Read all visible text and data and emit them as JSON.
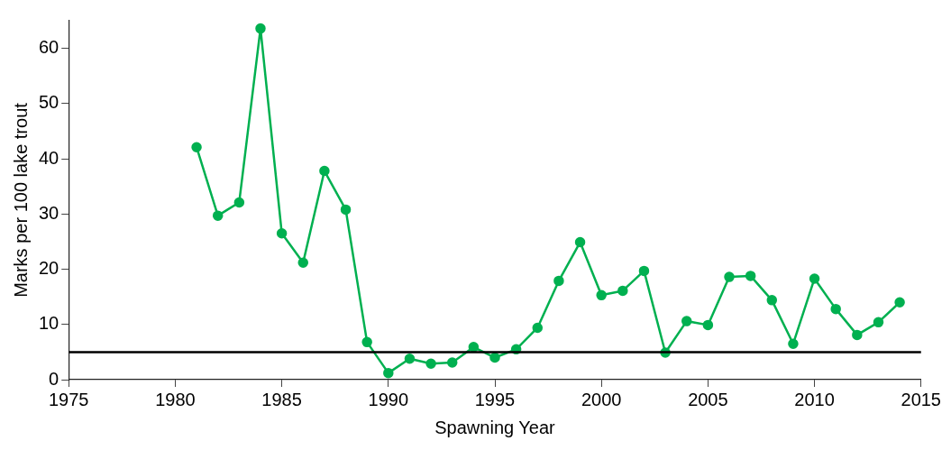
{
  "chart_data": {
    "type": "line",
    "xlabel": "Spawning Year",
    "ylabel": "Marks per 100 lake trout",
    "x": [
      1981,
      1982,
      1983,
      1984,
      1985,
      1986,
      1987,
      1988,
      1989,
      1990,
      1991,
      1992,
      1993,
      1994,
      1995,
      1996,
      1997,
      1998,
      1999,
      2000,
      2001,
      2002,
      2003,
      2004,
      2005,
      2006,
      2007,
      2008,
      2009,
      2010,
      2011,
      2012,
      2013,
      2014
    ],
    "series": [
      {
        "color": "#00b050",
        "values": [
          42.1,
          29.7,
          32.1,
          63.6,
          26.5,
          21.2,
          37.8,
          30.8,
          6.8,
          1.2,
          3.8,
          2.9,
          3.1,
          5.9,
          4.0,
          5.5,
          9.4,
          17.9,
          24.9,
          15.3,
          16.1,
          19.7,
          4.9,
          10.6,
          9.9,
          18.6,
          18.8,
          14.4,
          6.5,
          18.3,
          12.8,
          8.1,
          10.4,
          14.0
        ]
      }
    ],
    "xlim": [
      1975,
      2015
    ],
    "xticks": [
      1975,
      1980,
      1985,
      1990,
      1995,
      2000,
      2005,
      2010,
      2015
    ],
    "ylim": [
      0,
      65
    ],
    "yticks": [
      0,
      10,
      20,
      30,
      40,
      50,
      60
    ],
    "ref_lines": [
      {
        "axis": "y",
        "value": 5,
        "color": "#000000"
      }
    ],
    "grid": false,
    "legend": false,
    "marker": "circle",
    "line_style": "solid"
  }
}
